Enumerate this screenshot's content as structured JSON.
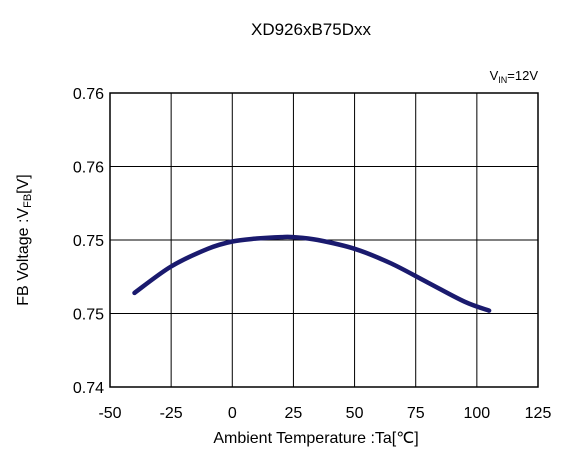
{
  "chart_data": {
    "type": "line",
    "title": "XD926xB75Dxx",
    "condition": {
      "main": "V",
      "sub": "IN",
      "rest": "=12V"
    },
    "xlabel": "Ambient Temperature :Ta[℃]",
    "ylabel": {
      "main": "FB Voltage :V",
      "sub": "FB",
      "rest": "[V]"
    },
    "xlim": [
      -50,
      125
    ],
    "x_ticks": [
      -50,
      -25,
      0,
      25,
      50,
      75,
      100,
      125
    ],
    "ylim": [
      0.74,
      0.76
    ],
    "y_ticks": [
      0.74,
      0.745,
      0.75,
      0.755,
      0.76
    ],
    "y_tick_labels": [
      "0.74",
      "0.75",
      "0.75",
      "0.76",
      "0.76"
    ],
    "grid": true,
    "series": [
      {
        "color": "#1a1a6e",
        "x": [
          -40,
          -25,
          -10,
          0,
          10,
          20,
          25,
          35,
          50,
          65,
          80,
          95,
          105
        ],
        "y": [
          0.7464,
          0.7482,
          0.7494,
          0.7499,
          0.7501,
          0.7502,
          0.7502,
          0.75,
          0.7494,
          0.7484,
          0.7471,
          0.7458,
          0.7452
        ]
      }
    ]
  }
}
